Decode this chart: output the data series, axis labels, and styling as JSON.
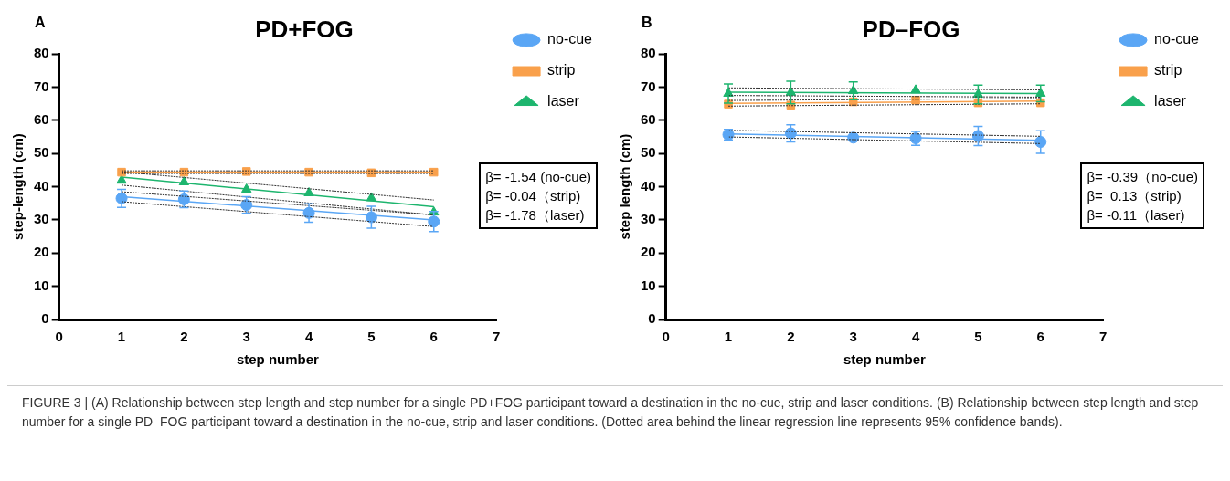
{
  "chart_data": [
    {
      "type": "scatter",
      "title": "PD+FOG",
      "xlabel": "step number",
      "ylabel": "step-length (cm)",
      "xlim": [
        0,
        7
      ],
      "xticks": [
        0,
        1,
        2,
        3,
        4,
        5,
        6,
        7
      ],
      "ylim": [
        0,
        80
      ],
      "yticks": [
        0,
        10,
        20,
        30,
        40,
        50,
        60,
        70,
        80
      ],
      "grid": false,
      "legend": "right",
      "annotations": [
        "A",
        "β= -1.54 (no-cue)",
        "β= -0.04（strip)",
        "β= -1.78（laser)"
      ],
      "series": [
        {
          "name": "no-cue",
          "color": "#5aa6f5",
          "marker": "circle",
          "x": [
            1,
            2,
            3,
            4,
            5,
            6
          ],
          "values": [
            36.5,
            36.2,
            34.5,
            32.1,
            30.8,
            29.5
          ],
          "errors": [
            2.7,
            2.5,
            2.5,
            2.8,
            3.3,
            3
          ]
        },
        {
          "name": "strip",
          "color": "#f9a04b",
          "marker": "square",
          "x": [
            1,
            2,
            3,
            4,
            5,
            6
          ],
          "values": [
            44.4,
            44.4,
            44.6,
            44.4,
            44.2,
            44.4
          ]
        },
        {
          "name": "laser",
          "color": "#1db56e",
          "marker": "triangle",
          "x": [
            1,
            2,
            3,
            4,
            5,
            6
          ],
          "values": [
            41.9,
            41.4,
            39.2,
            38.1,
            36.6,
            32.3
          ]
        },
        {
          "type": "line",
          "color": "#5aa6f5",
          "x": [
            1,
            6
          ],
          "values": [
            37,
            30
          ]
        },
        {
          "type": "line",
          "color": "#f9a04b",
          "x": [
            1,
            6
          ],
          "values": [
            44.4,
            44.4
          ]
        },
        {
          "type": "line",
          "color": "#1db56e",
          "x": [
            1,
            6
          ],
          "values": [
            42.9,
            34
          ]
        },
        {
          "type": "line",
          "color": "#333333",
          "line_style": "dotted",
          "x": [
            1,
            6
          ],
          "values": [
            38.5,
            31.5
          ]
        },
        {
          "type": "line",
          "color": "#333333",
          "line_style": "dotted",
          "x": [
            1,
            6
          ],
          "values": [
            35.5,
            28
          ]
        },
        {
          "type": "line",
          "color": "#333333",
          "line_style": "dotted",
          "x": [
            1,
            6
          ],
          "values": [
            44.8,
            44.8
          ]
        },
        {
          "type": "line",
          "color": "#333333",
          "line_style": "dotted",
          "x": [
            1,
            6
          ],
          "values": [
            44,
            44
          ]
        },
        {
          "type": "line",
          "color": "#333333",
          "line_style": "dotted",
          "x": [
            1,
            6
          ],
          "values": [
            44.5,
            36
          ]
        },
        {
          "type": "line",
          "color": "#333333",
          "line_style": "dotted",
          "x": [
            1,
            6
          ],
          "values": [
            40.5,
            31.5
          ]
        }
      ]
    },
    {
      "type": "scatter",
      "title": "PD–FOG",
      "xlabel": "step number",
      "ylabel": "step length (cm)",
      "xlim": [
        0,
        7
      ],
      "xticks": [
        0,
        1,
        2,
        3,
        4,
        5,
        6,
        7
      ],
      "ylim": [
        0,
        80
      ],
      "yticks": [
        0,
        10,
        20,
        30,
        40,
        50,
        60,
        70,
        80
      ],
      "grid": false,
      "legend": "right",
      "annotations": [
        "B",
        "β= -0.39（no-cue)",
        "β=  0.13（strip)",
        "β= -0.11（laser)",
        "FIGURE 3 | (A) Relationship between step length and step number for a single PD+FOG participant toward a destination in the no-cue, strip and laser conditions. (B) Relationship between step length and step number for a single PD–FOG participant toward a destination in the no-cue, strip and laser conditions. (Dotted area behind the linear regression line represents 95% confidence bands)."
      ],
      "series": [
        {
          "name": "no-cue",
          "color": "#5aa6f5",
          "marker": "circle",
          "x": [
            1,
            2,
            3,
            4,
            5,
            6
          ],
          "values": [
            55.7,
            56.1,
            54.8,
            54.6,
            55.3,
            53.5
          ],
          "errors": [
            1.6,
            2.6,
            null,
            2.1,
            2.9,
            3.4
          ]
        },
        {
          "name": "strip",
          "color": "#f9a04b",
          "marker": "square",
          "x": [
            1,
            2,
            3,
            4,
            5,
            6
          ],
          "values": [
            64.9,
            64.6,
            65.6,
            66.1,
            65.3,
            65.3
          ]
        },
        {
          "name": "laser",
          "color": "#1db56e",
          "marker": "triangle",
          "x": [
            1,
            2,
            3,
            4,
            5,
            6
          ],
          "values": [
            68.1,
            68.4,
            68.9,
            69.1,
            67.8,
            68.1
          ],
          "errors": [
            2.9,
            3.4,
            2.7,
            null,
            2.8,
            2.5
          ]
        },
        {
          "type": "line",
          "color": "#5aa6f5",
          "x": [
            1,
            6
          ],
          "values": [
            55.9,
            54
          ]
        },
        {
          "type": "line",
          "color": "#f9a04b",
          "x": [
            1,
            6
          ],
          "values": [
            65.1,
            65.8
          ]
        },
        {
          "type": "line",
          "color": "#1db56e",
          "x": [
            1,
            6
          ],
          "values": [
            68.5,
            68.1
          ]
        },
        {
          "type": "line",
          "color": "#333333",
          "line_style": "dotted",
          "x": [
            1,
            6
          ],
          "values": [
            57,
            55.2
          ]
        },
        {
          "type": "line",
          "color": "#333333",
          "line_style": "dotted",
          "x": [
            1,
            6
          ],
          "values": [
            55,
            53
          ]
        },
        {
          "type": "line",
          "color": "#333333",
          "line_style": "dotted",
          "x": [
            1,
            6
          ],
          "values": [
            66,
            66.6
          ]
        },
        {
          "type": "line",
          "color": "#333333",
          "line_style": "dotted",
          "x": [
            1,
            6
          ],
          "values": [
            64.3,
            65
          ]
        },
        {
          "type": "line",
          "color": "#333333",
          "line_style": "dotted",
          "x": [
            1,
            6
          ],
          "values": [
            69.8,
            69.2
          ]
        },
        {
          "type": "line",
          "color": "#333333",
          "line_style": "dotted",
          "x": [
            1,
            6
          ],
          "values": [
            67.5,
            67
          ]
        }
      ]
    }
  ]
}
